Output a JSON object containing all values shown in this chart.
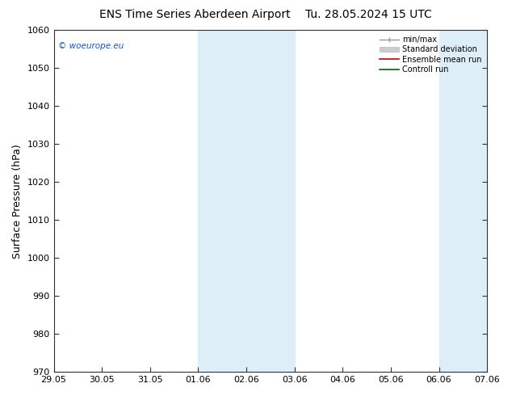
{
  "title_left": "ENS Time Series Aberdeen Airport",
  "title_right": "Tu. 28.05.2024 15 UTC",
  "ylabel": "Surface Pressure (hPa)",
  "ylim": [
    970,
    1060
  ],
  "yticks": [
    970,
    980,
    990,
    1000,
    1010,
    1020,
    1030,
    1040,
    1050,
    1060
  ],
  "x_labels": [
    "29.05",
    "30.05",
    "31.05",
    "01.06",
    "02.06",
    "03.06",
    "04.06",
    "05.06",
    "06.06",
    "07.06"
  ],
  "x_values": [
    0,
    1,
    2,
    3,
    4,
    5,
    6,
    7,
    8,
    9
  ],
  "shaded_regions": [
    {
      "xmin": 3.0,
      "xmax": 5.0
    },
    {
      "xmin": 8.0,
      "xmax": 9.0
    }
  ],
  "shaded_color": "#ddeef8",
  "legend_labels": [
    "min/max",
    "Standard deviation",
    "Ensemble mean run",
    "Controll run"
  ],
  "legend_line_colors": [
    "#aaaaaa",
    "#cccccc",
    "#cc0000",
    "#006600"
  ],
  "watermark_text": "© woeurope.eu",
  "watermark_color": "#1155cc",
  "background_color": "#ffffff",
  "plot_bg_color": "#ffffff",
  "grid_color": "#dddddd",
  "title_fontsize": 10,
  "axis_fontsize": 8,
  "tick_fontsize": 8,
  "ylabel_fontsize": 9
}
